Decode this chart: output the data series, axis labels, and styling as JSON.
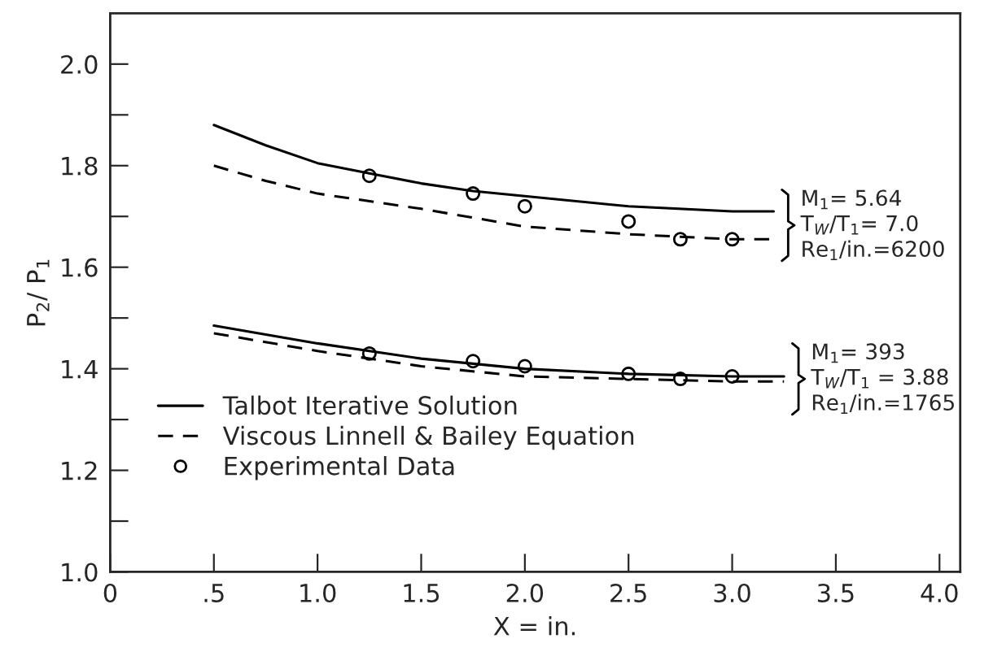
{
  "chart_data": {
    "type": "line",
    "xlabel": "X = in.",
    "ylabel": "P$_{2}$/ P$_{1}$",
    "xlim": [
      0,
      4.1
    ],
    "ylim": [
      1.0,
      2.1
    ],
    "xticks": [
      0,
      {
        "value": 0.5,
        "label": ".5"
      },
      {
        "value": 1.0,
        "label": "1.0"
      },
      1.5,
      {
        "value": 2.0,
        "label": "2.0"
      },
      2.5,
      {
        "value": 3.0,
        "label": "3.0"
      },
      3.5,
      {
        "value": 4.0,
        "label": "4.0"
      }
    ],
    "yticks": [
      {
        "value": 1.0,
        "label": "1.0"
      },
      {
        "value": 1.1,
        "label": null
      },
      1.2,
      {
        "value": 1.3,
        "label": null
      },
      1.4,
      {
        "value": 1.5,
        "label": null
      },
      1.6,
      {
        "value": 1.7,
        "label": null
      },
      1.8,
      {
        "value": 1.9,
        "label": null
      },
      {
        "value": 2.0,
        "label": "2.0"
      }
    ],
    "grid": false,
    "legend": "left",
    "series": [
      {
        "name": "Talbot Iterative Solution",
        "line_style": "solid",
        "marker": "none",
        "color": "#000000",
        "x": [
          0.5,
          0.75,
          1.0,
          1.25,
          1.5,
          1.75,
          2.0,
          2.5,
          3.0,
          3.2
        ],
        "values": [
          1.88,
          1.84,
          1.805,
          1.785,
          1.765,
          1.75,
          1.74,
          1.72,
          1.71,
          1.71
        ]
      },
      {
        "name": "Viscous Linnell & Bailey Equation",
        "line_style": "dashed",
        "marker": "none",
        "color": "#000000",
        "x": [
          0.5,
          0.75,
          1.0,
          1.5,
          2.0,
          2.5,
          3.0,
          3.2
        ],
        "values": [
          1.8,
          1.77,
          1.745,
          1.715,
          1.68,
          1.665,
          1.655,
          1.655
        ]
      },
      {
        "name": "Experimental Data",
        "type": "scatter",
        "marker": "circle",
        "color": "#000000",
        "x": [
          1.25,
          1.75,
          2.0,
          2.5,
          2.75,
          3.0
        ],
        "values": [
          1.78,
          1.745,
          1.72,
          1.69,
          1.655,
          1.655
        ]
      },
      {
        "line_style": "solid",
        "marker": "none",
        "color": "#000000",
        "x": [
          0.5,
          1.0,
          1.5,
          2.0,
          2.5,
          3.0,
          3.25
        ],
        "values": [
          1.485,
          1.45,
          1.42,
          1.4,
          1.39,
          1.385,
          1.385
        ]
      },
      {
        "line_style": "dashed",
        "marker": "none",
        "color": "#000000",
        "x": [
          0.5,
          1.0,
          1.5,
          2.0,
          2.5,
          3.0,
          3.25
        ],
        "values": [
          1.47,
          1.435,
          1.405,
          1.385,
          1.38,
          1.375,
          1.375
        ]
      },
      {
        "type": "scatter",
        "marker": "circle",
        "color": "#000000",
        "x": [
          1.25,
          1.75,
          2.0,
          2.5,
          2.75,
          3.0
        ],
        "values": [
          1.43,
          1.415,
          1.405,
          1.39,
          1.38,
          1.385
        ]
      }
    ],
    "annotations": [
      "M$_{1}$= 5.64",
      "T$_{W}$/T$_{1}$= 7.0",
      "Re$_{1}$/in.=6200",
      "M$_{1}$= 393",
      "T$_{W}$/T$_{1}$ = 3.88",
      "Re$_{1}$/in.=1765"
    ]
  }
}
